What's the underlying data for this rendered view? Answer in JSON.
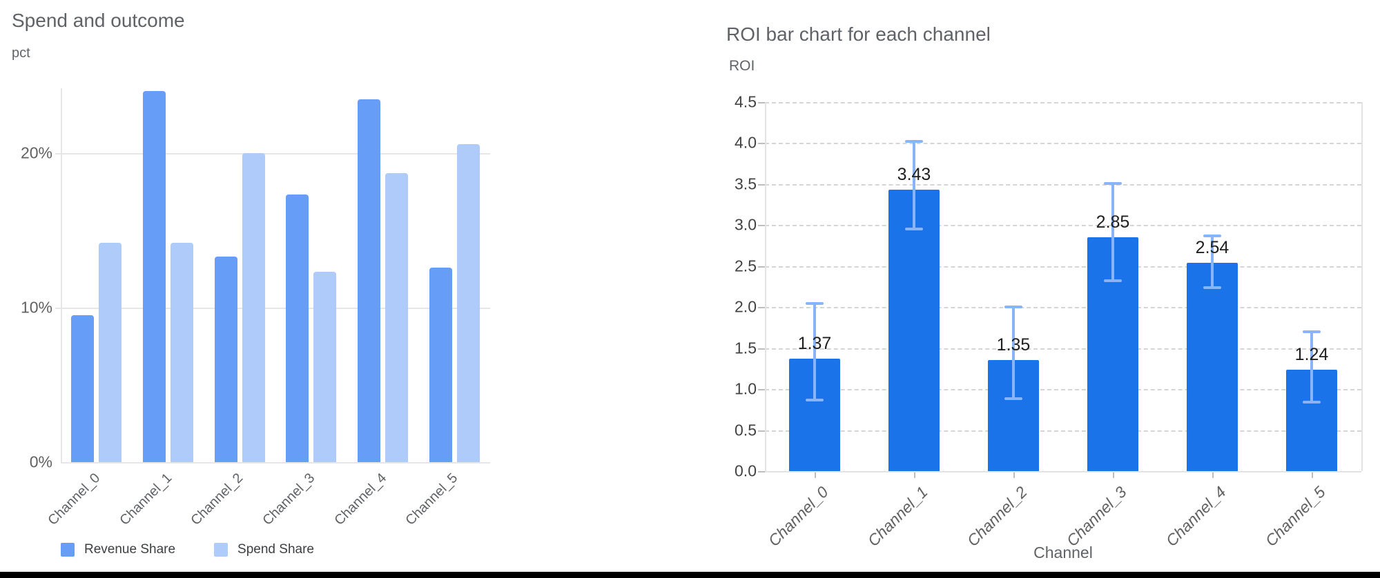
{
  "chart_data": [
    {
      "type": "bar",
      "title": "Spend and outcome",
      "ylabel": "pct",
      "xlabel": "",
      "categories": [
        "Channel_0",
        "Channel_1",
        "Channel_2",
        "Channel_3",
        "Channel_4",
        "Channel_5"
      ],
      "series": [
        {
          "name": "Revenue Share",
          "color": "#669df6",
          "values": [
            9.5,
            24.0,
            13.3,
            17.3,
            23.5,
            12.6
          ]
        },
        {
          "name": "Spend Share",
          "color": "#aecbfa",
          "values": [
            14.2,
            14.2,
            20.0,
            12.3,
            18.7,
            20.6
          ]
        }
      ],
      "yticks": [
        {
          "v": 0,
          "label": "0%"
        },
        {
          "v": 10,
          "label": "10%"
        },
        {
          "v": 20,
          "label": "20%"
        }
      ],
      "ylim": [
        0,
        24.5
      ],
      "grid": "solid-horizontal",
      "legend_position": "bottom"
    },
    {
      "type": "bar",
      "title": "ROI bar chart for each channel",
      "ylabel": "ROI",
      "xlabel": "Channel",
      "categories": [
        "Channel_0",
        "Channel_1",
        "Channel_2",
        "Channel_3",
        "Channel_4",
        "Channel_5"
      ],
      "values": [
        1.37,
        3.43,
        1.35,
        2.85,
        2.54,
        1.24
      ],
      "value_labels": [
        "1.37",
        "3.43",
        "1.35",
        "2.85",
        "2.54",
        "1.24"
      ],
      "error_low": [
        0.87,
        2.95,
        0.88,
        2.32,
        2.24,
        0.84
      ],
      "error_high": [
        2.04,
        4.02,
        2.0,
        3.51,
        2.87,
        1.7
      ],
      "bar_color": "#1a73e8",
      "error_color": "#8ab4f8",
      "ylim": [
        0,
        4.5
      ],
      "ytick_step": 0.5,
      "grid": "dashed-horizontal",
      "legend_position": "none"
    }
  ],
  "page": {
    "background": "#ffffff",
    "bottom_border_color": "#000000"
  }
}
